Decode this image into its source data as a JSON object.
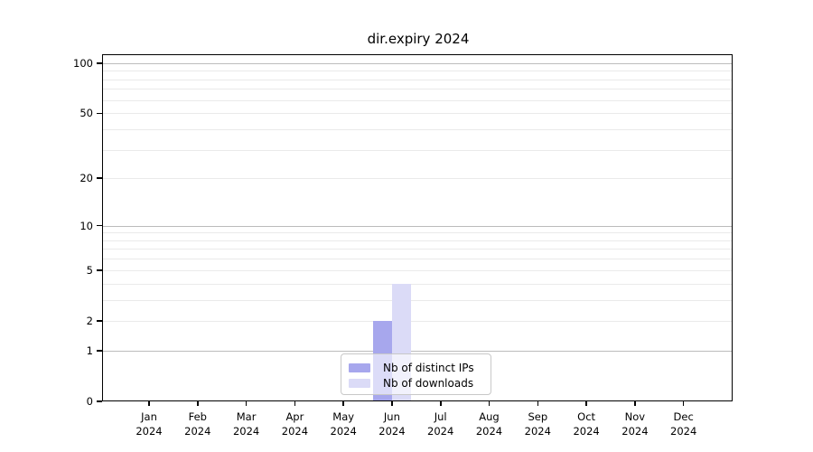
{
  "chart_data": {
    "type": "bar",
    "title": "dir.expiry 2024",
    "categories": [
      "Jan",
      "Feb",
      "Mar",
      "Apr",
      "May",
      "Jun",
      "Jul",
      "Aug",
      "Sep",
      "Oct",
      "Nov",
      "Dec"
    ],
    "year_label": "2024",
    "series": [
      {
        "name": "Nb of distinct IPs",
        "color": "#a7a7ed",
        "values": [
          0,
          0,
          0,
          0,
          0,
          2,
          0,
          0,
          0,
          0,
          0,
          0
        ]
      },
      {
        "name": "Nb of downloads",
        "color": "#dbdbf7",
        "values": [
          0,
          0,
          0,
          0,
          0,
          4,
          0,
          0,
          0,
          0,
          0,
          0
        ]
      }
    ],
    "y_ticks": [
      0,
      1,
      2,
      5,
      10,
      20,
      50,
      100
    ],
    "gridlines": {
      "major": [
        1,
        10,
        100
      ],
      "minor": [
        2,
        3,
        4,
        5,
        6,
        7,
        8,
        9,
        20,
        30,
        40,
        50,
        60,
        70,
        80,
        90
      ]
    },
    "ylim": [
      0,
      113
    ],
    "yscale": "log10(1+v)",
    "grid": "on",
    "legend": {
      "position": "lower center"
    },
    "colors": {
      "bar_distinct_ips": "#a7a7ed",
      "bar_downloads": "#dbdbf7",
      "major_grid": "#bcbcbc",
      "minor_grid": "#eaeaea",
      "axis": "#000000"
    }
  }
}
